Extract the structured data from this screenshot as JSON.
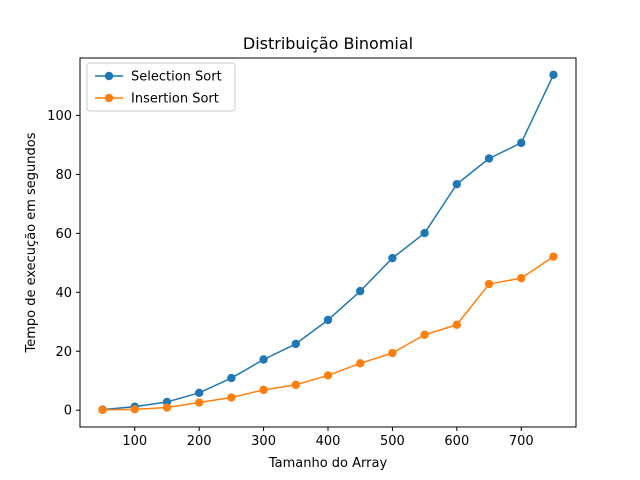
{
  "chart_data": {
    "type": "line",
    "title": "Distribuição Binomial",
    "xlabel": "Tamanho do Array",
    "ylabel": "Tempo de execução em segundos",
    "xlim": [
      15,
      785
    ],
    "ylim": [
      -5.7,
      119.5
    ],
    "x_ticks": [
      100,
      200,
      300,
      400,
      500,
      600,
      700
    ],
    "y_ticks": [
      0,
      20,
      40,
      60,
      80,
      100
    ],
    "grid": false,
    "legend_position": "upper-left",
    "x": [
      50,
      100,
      150,
      200,
      250,
      300,
      350,
      400,
      450,
      500,
      550,
      600,
      650,
      700,
      750
    ],
    "series": [
      {
        "name": "Selection Sort",
        "color": "#1f77b4",
        "marker": "circle",
        "values": [
          0.2,
          1.2,
          2.8,
          5.9,
          10.9,
          17.2,
          22.5,
          30.6,
          40.4,
          51.6,
          60.1,
          76.7,
          85.4,
          90.7,
          113.8
        ]
      },
      {
        "name": "Insertion Sort",
        "color": "#ff7f0e",
        "marker": "circle",
        "values": [
          0.1,
          0.3,
          0.9,
          2.6,
          4.3,
          6.9,
          8.6,
          11.8,
          15.9,
          19.4,
          25.6,
          29.0,
          42.8,
          44.8,
          52.1
        ]
      }
    ]
  }
}
